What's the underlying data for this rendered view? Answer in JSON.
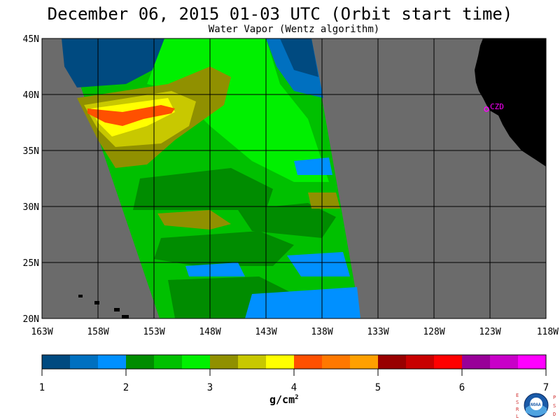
{
  "header": {
    "title": "December 06, 2015  01-03 UTC  (Orbit start time)",
    "subtitle": "Water Vapor (Wentz algorithm)"
  },
  "map": {
    "lat_labels": [
      "45N",
      "40N",
      "35N",
      "30N",
      "25N",
      "20N"
    ],
    "lon_labels": [
      "163W",
      "158W",
      "153W",
      "148W",
      "143W",
      "138W",
      "133W",
      "128W",
      "123W",
      "118W"
    ],
    "station_label": "CZD",
    "colors": {
      "ocean_nodata": "#6b6b6b",
      "land": "#000000",
      "grid": "#000000",
      "station": "#ff00ff"
    }
  },
  "colorbar": {
    "ticks": [
      "1",
      "2",
      "3",
      "4",
      "5",
      "6",
      "7"
    ],
    "unit": "g/cm",
    "unit_exponent": "2",
    "colors": [
      "#004a80",
      "#0070c0",
      "#0090ff",
      "#008c00",
      "#00c000",
      "#00f000",
      "#909000",
      "#c8c800",
      "#ffff00",
      "#ff5000",
      "#ff7800",
      "#ffa000",
      "#980000",
      "#c80000",
      "#ff0000",
      "#980098",
      "#c800c8",
      "#ff00ff"
    ]
  },
  "logo": {
    "left_letters": "ESRL",
    "right_letters": "PSD",
    "center_text": "NOAA"
  }
}
